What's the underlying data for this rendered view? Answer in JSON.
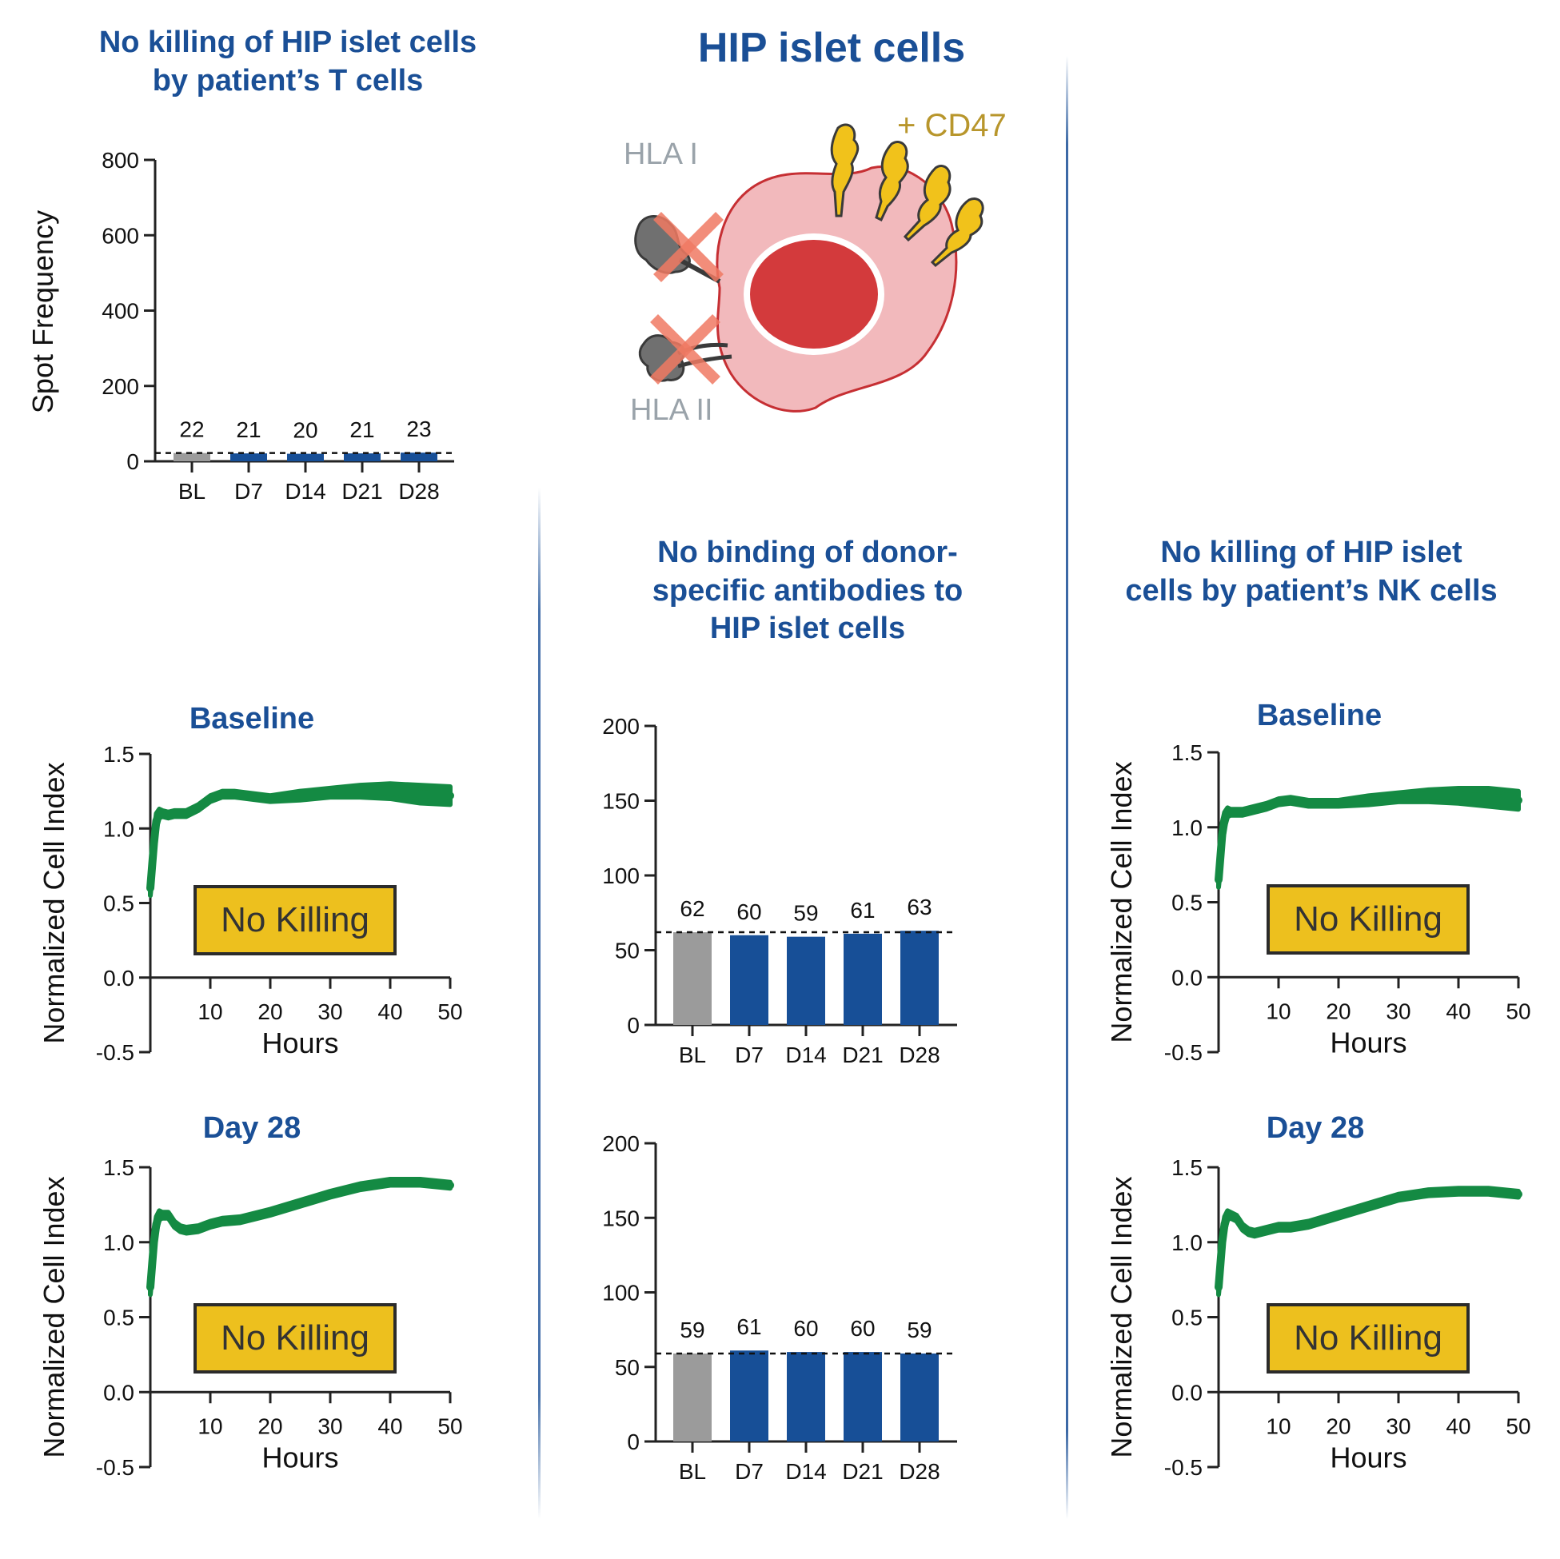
{
  "colors": {
    "title_blue": "#1a4f96",
    "bar_blue": "#174f97",
    "bar_gray": "#9b9b9b",
    "line_green": "#148a43",
    "badge_yellow": "#edc01e",
    "cd47_gold": "#b8962c",
    "hla_gray": "#9aa3aa",
    "cell_pink": "#f2b9bc",
    "nucleus_red": "#d33a3c",
    "cross_red": "#f07a63"
  },
  "header": {
    "main_title": "HIP islet cells",
    "tcell_title_lines": [
      "No killing of HIP islet cells",
      "by patient’s T cells"
    ],
    "antibody_title_lines": [
      "No binding of donor-",
      "specific antibodies to",
      "HIP islet cells"
    ],
    "nk_title_lines": [
      "No killing of HIP islet",
      "cells by patient’s NK cells"
    ]
  },
  "illustration": {
    "hla1_label": "HLA I",
    "hla2_label": "HLA II",
    "cd47_label": "+ CD47",
    "icon": "hip-islet-cell-icon"
  },
  "panel_titles": {
    "left_baseline": "Baseline",
    "left_day28": "Day 28",
    "right_baseline": "Baseline",
    "right_day28": "Day 28"
  },
  "badges": {
    "left_baseline": "No Killing",
    "left_day28": "No Killing",
    "right_baseline": "No Killing",
    "right_day28": "No Killing"
  },
  "chart_data": [
    {
      "id": "tcell_elispot",
      "type": "bar",
      "ylabel": "Spot Frequency",
      "xlabel": "",
      "ylim": [
        0,
        800
      ],
      "yticks": [
        0,
        200,
        400,
        600,
        800
      ],
      "categories": [
        "BL",
        "D7",
        "D14",
        "D21",
        "D28"
      ],
      "values": [
        22,
        21,
        20,
        21,
        23
      ],
      "value_labels": [
        "22",
        "21",
        "20",
        "21",
        "23"
      ],
      "bar_colors": [
        "#9b9b9b",
        "#174f97",
        "#174f97",
        "#174f97",
        "#174f97"
      ],
      "reference_line": 22
    },
    {
      "id": "dsa_top",
      "type": "bar",
      "ylabel": "",
      "xlabel": "",
      "ylim": [
        0,
        200
      ],
      "yticks": [
        0,
        50,
        100,
        150,
        200
      ],
      "categories": [
        "BL",
        "D7",
        "D14",
        "D21",
        "D28"
      ],
      "values": [
        62,
        60,
        59,
        61,
        63
      ],
      "value_labels": [
        "62",
        "60",
        "59",
        "61",
        "63"
      ],
      "bar_colors": [
        "#9b9b9b",
        "#174f97",
        "#174f97",
        "#174f97",
        "#174f97"
      ],
      "reference_line": 62
    },
    {
      "id": "dsa_bottom",
      "type": "bar",
      "ylabel": "",
      "xlabel": "",
      "ylim": [
        0,
        200
      ],
      "yticks": [
        0,
        50,
        100,
        150,
        200
      ],
      "categories": [
        "BL",
        "D7",
        "D14",
        "D21",
        "D28"
      ],
      "values": [
        59,
        61,
        60,
        60,
        59
      ],
      "value_labels": [
        "59",
        "61",
        "60",
        "60",
        "59"
      ],
      "bar_colors": [
        "#9b9b9b",
        "#174f97",
        "#174f97",
        "#174f97",
        "#174f97"
      ],
      "reference_line": 59
    },
    {
      "id": "tcell_baseline",
      "type": "line",
      "title": "Baseline",
      "xlabel": "Hours",
      "ylabel": "Normalized Cell Index",
      "xlim": [
        0,
        50
      ],
      "ylim": [
        -0.5,
        1.5
      ],
      "xticks": [
        10,
        20,
        30,
        40,
        50
      ],
      "yticks": [
        "-0.5",
        "0.0",
        "0.5",
        "1.0",
        "1.5"
      ],
      "series": [
        {
          "x": [
            0,
            0.3,
            0.6,
            1,
            1.5,
            2,
            3,
            4,
            5,
            6,
            8,
            10,
            12,
            14,
            16,
            20,
            25,
            30,
            35,
            40,
            45,
            50
          ],
          "y": [
            0.6,
            0.75,
            0.9,
            1.05,
            1.1,
            1.1,
            1.09,
            1.1,
            1.1,
            1.1,
            1.14,
            1.2,
            1.23,
            1.23,
            1.22,
            1.2,
            1.22,
            1.24,
            1.25,
            1.25,
            1.23,
            1.22
          ],
          "spread": [
            0.05,
            0.08,
            0.08,
            0.05,
            0.03,
            0.02,
            0.02,
            0.02,
            0.02,
            0.02,
            0.02,
            0.02,
            0.02,
            0.02,
            0.02,
            0.02,
            0.03,
            0.03,
            0.04,
            0.05,
            0.06,
            0.06
          ]
        }
      ]
    },
    {
      "id": "tcell_day28",
      "type": "line",
      "title": "Day 28",
      "xlabel": "Hours",
      "ylabel": "Normalized Cell Index",
      "xlim": [
        0,
        50
      ],
      "ylim": [
        -0.5,
        1.5
      ],
      "xticks": [
        10,
        20,
        30,
        40,
        50
      ],
      "yticks": [
        "-0.5",
        "0.0",
        "0.5",
        "1.0",
        "1.5"
      ],
      "series": [
        {
          "x": [
            0,
            0.3,
            0.6,
            1,
            1.5,
            2,
            3,
            4,
            5,
            6,
            8,
            10,
            12,
            15,
            20,
            25,
            30,
            35,
            40,
            45,
            50
          ],
          "y": [
            0.7,
            0.85,
            1.0,
            1.12,
            1.18,
            1.18,
            1.18,
            1.12,
            1.09,
            1.08,
            1.09,
            1.12,
            1.14,
            1.15,
            1.2,
            1.26,
            1.32,
            1.37,
            1.4,
            1.4,
            1.38
          ],
          "spread": [
            0.05,
            0.08,
            0.08,
            0.05,
            0.03,
            0.02,
            0.02,
            0.02,
            0.02,
            0.02,
            0.02,
            0.02,
            0.02,
            0.02,
            0.02,
            0.02,
            0.02,
            0.02,
            0.02,
            0.02,
            0.02
          ]
        }
      ]
    },
    {
      "id": "nk_baseline",
      "type": "line",
      "title": "Baseline",
      "xlabel": "Hours",
      "ylabel": "Normalized Cell Index",
      "xlim": [
        0,
        50
      ],
      "ylim": [
        -0.5,
        1.5
      ],
      "xticks": [
        10,
        20,
        30,
        40,
        50
      ],
      "yticks": [
        "-0.5",
        "0.0",
        "0.5",
        "1.0",
        "1.5"
      ],
      "series": [
        {
          "x": [
            0,
            0.3,
            0.6,
            1,
            1.5,
            2,
            3,
            4,
            5,
            6,
            8,
            10,
            12,
            15,
            20,
            25,
            30,
            35,
            40,
            45,
            50
          ],
          "y": [
            0.65,
            0.8,
            0.95,
            1.05,
            1.1,
            1.1,
            1.1,
            1.1,
            1.11,
            1.12,
            1.14,
            1.17,
            1.18,
            1.16,
            1.16,
            1.18,
            1.2,
            1.21,
            1.21,
            1.2,
            1.18
          ],
          "spread": [
            0.05,
            0.08,
            0.08,
            0.05,
            0.03,
            0.02,
            0.02,
            0.02,
            0.02,
            0.02,
            0.02,
            0.02,
            0.02,
            0.02,
            0.02,
            0.03,
            0.03,
            0.04,
            0.05,
            0.06,
            0.06
          ]
        }
      ]
    },
    {
      "id": "nk_day28",
      "type": "line",
      "title": "Day 28",
      "xlabel": "Hours",
      "ylabel": "Normalized Cell Index",
      "xlim": [
        0,
        50
      ],
      "ylim": [
        -0.5,
        1.5
      ],
      "xticks": [
        10,
        20,
        30,
        40,
        50
      ],
      "yticks": [
        "-0.5",
        "0.0",
        "0.5",
        "1.0",
        "1.5"
      ],
      "series": [
        {
          "x": [
            0,
            0.3,
            0.6,
            1,
            1.5,
            2,
            3,
            4,
            5,
            6,
            8,
            10,
            12,
            15,
            20,
            25,
            30,
            35,
            40,
            45,
            50
          ],
          "y": [
            0.7,
            0.85,
            1.0,
            1.12,
            1.18,
            1.18,
            1.16,
            1.1,
            1.07,
            1.06,
            1.08,
            1.1,
            1.1,
            1.12,
            1.18,
            1.24,
            1.3,
            1.33,
            1.34,
            1.34,
            1.32
          ],
          "spread": [
            0.05,
            0.08,
            0.08,
            0.05,
            0.03,
            0.02,
            0.02,
            0.02,
            0.02,
            0.02,
            0.02,
            0.02,
            0.02,
            0.02,
            0.02,
            0.02,
            0.02,
            0.02,
            0.02,
            0.02,
            0.02
          ]
        }
      ]
    }
  ]
}
